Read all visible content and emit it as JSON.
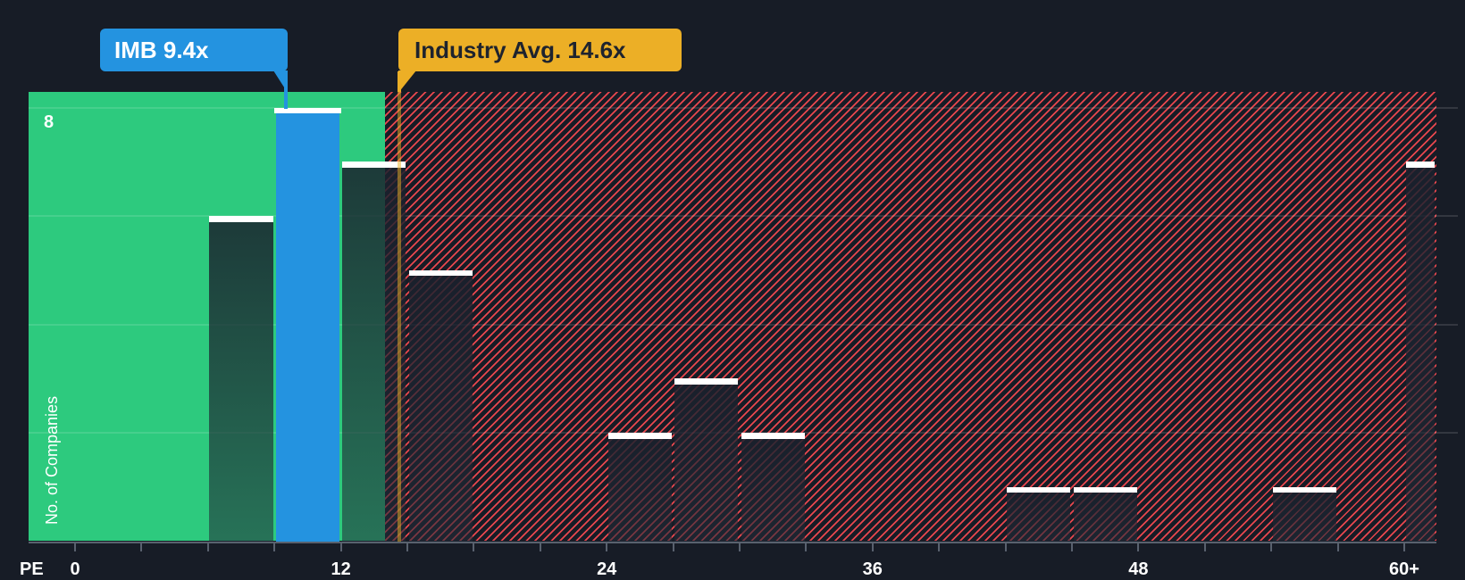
{
  "tooltips": {
    "company": {
      "label": "IMB 9.4x",
      "color": "#2493E0"
    },
    "industry": {
      "label": "Industry Avg. 14.6x",
      "color": "#ECAF26"
    }
  },
  "colors": {
    "background": "#171C26",
    "undervalued_green": "#2DCA7E",
    "overvalued_hatch_red": "#E8474E",
    "company_blue": "#2493E0",
    "industry_yellow": "#ECAF26",
    "bar_cap_white": "#FFFFFF",
    "axis_gray": "#59616E"
  },
  "chart_data": {
    "type": "bar",
    "title": "PE ratio distribution vs industry",
    "xlabel": "PE",
    "ylabel": "No. of Companies",
    "y_top_tick_label": "8",
    "company": {
      "name": "IMB",
      "pe": 9.4
    },
    "industry_avg_pe": 14.6,
    "region_split_pe": 14,
    "x_major_ticks": [
      {
        "pe": 0,
        "label": "0"
      },
      {
        "pe": 12,
        "label": "12"
      },
      {
        "pe": 24,
        "label": "24"
      },
      {
        "pe": 36,
        "label": "36"
      },
      {
        "pe": 48,
        "label": "48"
      },
      {
        "pe": 60,
        "label": "60+"
      }
    ],
    "minor_tick_step": 3,
    "xlim": [
      0,
      61.5
    ],
    "ylim": [
      0,
      8.3
    ],
    "gridline_counts": [
      2,
      4,
      6,
      8
    ],
    "bins": [
      {
        "from": 6,
        "to": 9,
        "count": 6
      },
      {
        "from": 9,
        "to": 12,
        "count": 8,
        "highlight": true
      },
      {
        "from": 12,
        "to": 15,
        "count": 7
      },
      {
        "from": 15,
        "to": 18,
        "count": 5
      },
      {
        "from": 24,
        "to": 27,
        "count": 2
      },
      {
        "from": 27,
        "to": 30,
        "count": 3
      },
      {
        "from": 30,
        "to": 33,
        "count": 2
      },
      {
        "from": 42,
        "to": 45,
        "count": 1
      },
      {
        "from": 45,
        "to": 48,
        "count": 1
      },
      {
        "from": 54,
        "to": 57,
        "count": 1
      },
      {
        "from": 60,
        "to": 61.45,
        "count": 7,
        "open_ended": true,
        "bin_label": "60+"
      }
    ]
  }
}
